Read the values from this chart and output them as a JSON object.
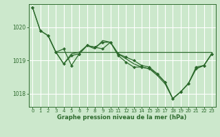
{
  "background_color": "#cce8cc",
  "grid_color": "#ffffff",
  "line_color": "#2d6a2d",
  "marker_color": "#2d6a2d",
  "xlabel": "Graphe pression niveau de la mer (hPa)",
  "xlim": [
    -0.5,
    23.5
  ],
  "ylim": [
    1017.6,
    1020.7
  ],
  "yticks": [
    1018,
    1019,
    1020
  ],
  "xticks": [
    0,
    1,
    2,
    3,
    4,
    5,
    6,
    7,
    8,
    9,
    10,
    11,
    12,
    13,
    14,
    15,
    16,
    17,
    18,
    19,
    20,
    21,
    22,
    23
  ],
  "series1": {
    "x": [
      0,
      1,
      2,
      3,
      4,
      5,
      6,
      7,
      8,
      9,
      10,
      11,
      12,
      13,
      14,
      15,
      16,
      17,
      18,
      19,
      20,
      21,
      22,
      23
    ],
    "y": [
      1020.6,
      1019.9,
      1019.75,
      1019.25,
      1018.9,
      1019.15,
      1019.2,
      1019.45,
      1019.4,
      1019.55,
      1019.55,
      1019.2,
      1019.1,
      1019.0,
      1018.85,
      1018.8,
      1018.6,
      1018.35,
      1017.85,
      1018.05,
      1018.3,
      1018.8,
      1018.85,
      1019.2
    ]
  },
  "series2": {
    "x": [
      0,
      1,
      2,
      3,
      4,
      5,
      6,
      7,
      8,
      9,
      10,
      11,
      12,
      13,
      14,
      15,
      16,
      17,
      18,
      19,
      20,
      21,
      22,
      23
    ],
    "y": [
      1020.6,
      1019.9,
      1019.75,
      1019.25,
      1019.35,
      1018.85,
      1019.2,
      1019.45,
      1019.4,
      1019.35,
      1019.55,
      1019.15,
      1018.95,
      1018.8,
      1018.8,
      1018.75,
      1018.6,
      1018.35,
      1017.85,
      1018.05,
      1018.3,
      1018.75,
      1018.85,
      1019.2
    ],
    "has_markers": true
  },
  "series3": {
    "x": [
      2,
      3,
      4,
      5,
      6,
      7,
      8,
      9,
      10,
      11,
      12,
      13,
      14,
      15,
      16,
      17,
      18,
      19,
      20,
      21,
      22,
      23
    ],
    "y": [
      1019.75,
      1019.25,
      1018.9,
      1019.2,
      1019.25,
      1019.45,
      1019.35,
      1019.6,
      1019.55,
      1019.2,
      1019.05,
      1018.9,
      1018.8,
      1018.75,
      1018.55,
      1018.3,
      1017.85,
      1018.05,
      1018.3,
      1018.75,
      1018.85,
      1019.2
    ],
    "has_markers": false
  },
  "series4_horizontal": {
    "x": [
      3,
      23
    ],
    "y": [
      1019.25,
      1019.25
    ]
  }
}
